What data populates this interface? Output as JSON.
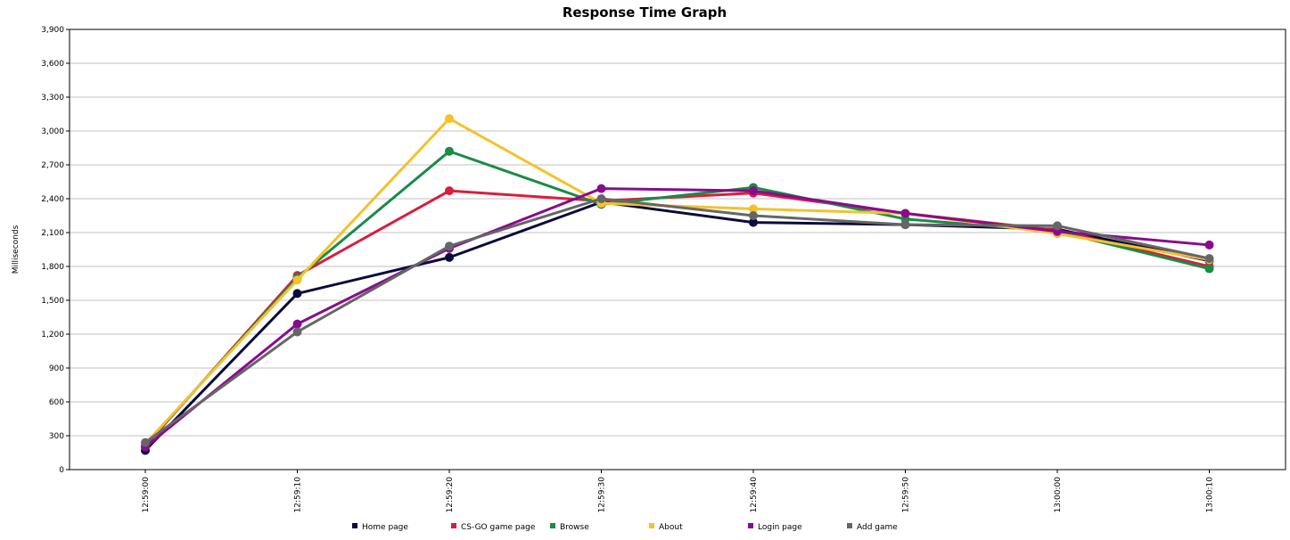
{
  "chart_data": {
    "type": "line",
    "title": "Response Time Graph",
    "xlabel": "",
    "ylabel": "Milliseconds",
    "x": [
      "12:59:00",
      "12:59:10",
      "12:59:20",
      "12:59:30",
      "12:59:40",
      "12:59:50",
      "13:00:00",
      "13:00:10"
    ],
    "ylim": [
      0,
      3900
    ],
    "yticks": [
      0,
      300,
      600,
      900,
      1200,
      1500,
      1800,
      2100,
      2400,
      2700,
      3000,
      3300,
      3600,
      3900
    ],
    "ytick_labels": [
      "0",
      "300",
      "600",
      "900",
      "1,200",
      "1,500",
      "1,800",
      "2,100",
      "2,400",
      "2,700",
      "3,000",
      "3,300",
      "3,600",
      "3,900"
    ],
    "grid": true,
    "legend_position": "bottom",
    "series": [
      {
        "name": "Home page",
        "color": "#0b0a3c",
        "values": [
          170,
          1560,
          1880,
          2370,
          2190,
          2170,
          2130,
          1850
        ]
      },
      {
        "name": "CS-GO game page",
        "color": "#d91e3d",
        "values": [
          210,
          1720,
          2470,
          2380,
          2450,
          2270,
          2120,
          1800
        ]
      },
      {
        "name": "Browse",
        "color": "#1a8c46",
        "values": [
          220,
          1700,
          2820,
          2350,
          2500,
          2220,
          2110,
          1780
        ]
      },
      {
        "name": "About",
        "color": "#f5c12c",
        "values": [
          230,
          1680,
          3110,
          2360,
          2310,
          2270,
          2090,
          1860
        ]
      },
      {
        "name": "Login page",
        "color": "#8a0a8e",
        "values": [
          200,
          1290,
          1960,
          2490,
          2470,
          2270,
          2110,
          1990
        ]
      },
      {
        "name": "Add game",
        "color": "#666666",
        "values": [
          240,
          1220,
          1980,
          2400,
          2250,
          2170,
          2160,
          1870
        ]
      }
    ]
  }
}
